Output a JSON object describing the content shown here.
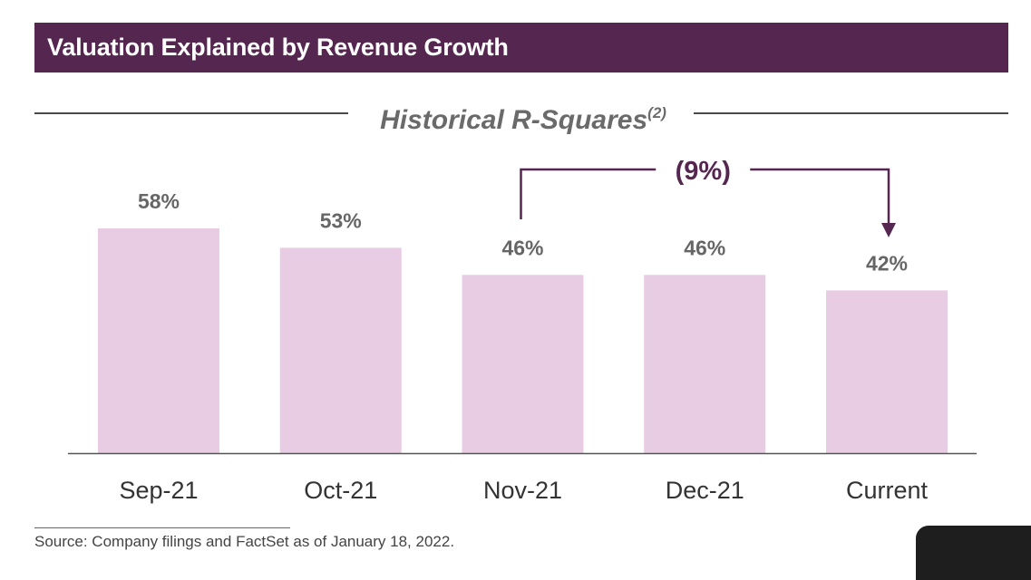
{
  "header": {
    "title": "Valuation Explained by Revenue Growth"
  },
  "chart": {
    "subtitle": "Historical R-Squares",
    "subtitle_sup": "(2)"
  },
  "chart_data": {
    "type": "bar",
    "title": "Historical R-Squares",
    "categories": [
      "Sep-21",
      "Oct-21",
      "Nov-21",
      "Dec-21",
      "Current"
    ],
    "values": [
      58,
      53,
      46,
      46,
      42
    ],
    "data_labels": [
      "58%",
      "53%",
      "46%",
      "46%",
      "42%"
    ],
    "unit": "%",
    "ylim": [
      0,
      58
    ],
    "grid": false,
    "legend": "none",
    "bar_color": "#e8cce4",
    "annotation": {
      "text": "(9%)",
      "from_category": "Nov-21",
      "to_category": "Current",
      "color": "#55264f"
    }
  },
  "footer": {
    "source": "Source: Company filings and FactSet as of January 18, 2022."
  },
  "colors": {
    "brand": "#55264f",
    "bar": "#e8cce4",
    "axis": "#555555",
    "label": "#666666"
  }
}
